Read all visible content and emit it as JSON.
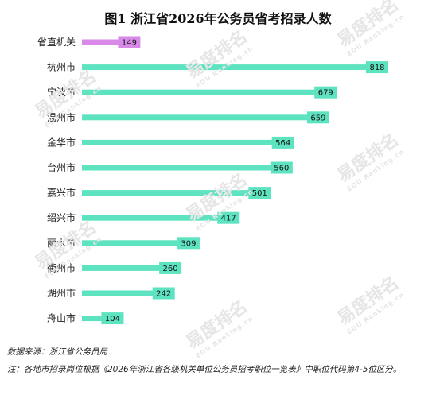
{
  "chart_data": {
    "type": "bar",
    "orientation": "horizontal",
    "title": "图1 浙江省2026年公务员省考招录人数",
    "categories": [
      "省直机关",
      "杭州市",
      "宁波市",
      "温州市",
      "金华市",
      "台州市",
      "嘉兴市",
      "绍兴市",
      "丽水市",
      "衢州市",
      "湖州市",
      "舟山市"
    ],
    "values": [
      149,
      818,
      679,
      659,
      564,
      560,
      501,
      417,
      309,
      260,
      242,
      104
    ],
    "xlim": [
      0,
      818
    ],
    "grid": false,
    "legend": "none",
    "colors": {
      "default": "#5ee3c0",
      "highlight": "#d98ae8"
    },
    "highlight_index": 0
  },
  "footer": {
    "source": "数据来源：浙江省公务员局",
    "note": "注：各地市招录岗位根据《2026年浙江省各级机关单位公务员招考职位一览表》中职位代码第4-5位区分。"
  },
  "watermark": {
    "text": "易度排名",
    "sub": "EDU Ranking.cn"
  }
}
